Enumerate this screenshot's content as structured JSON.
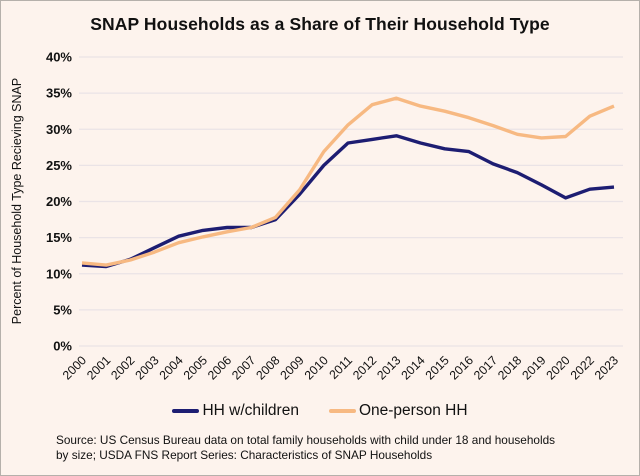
{
  "title": "SNAP Households as a Share of Their Household Type",
  "chart_data": {
    "type": "line",
    "categories": [
      "2000",
      "2001",
      "2002",
      "2003",
      "2004",
      "2005",
      "2006",
      "2007",
      "2008",
      "2009",
      "2010",
      "2011",
      "2012",
      "2013",
      "2014",
      "2015",
      "2016",
      "2017",
      "2018",
      "2019",
      "2020",
      "2022",
      "2023"
    ],
    "series": [
      {
        "name": "HH w/children",
        "color": "#1d1d72",
        "values": [
          11.2,
          11.0,
          12.0,
          13.6,
          15.2,
          16.0,
          16.4,
          16.4,
          17.5,
          21.0,
          25.0,
          28.1,
          28.6,
          29.1,
          28.1,
          27.3,
          26.9,
          25.2,
          24.0,
          22.3,
          20.5,
          21.7,
          22.0
        ]
      },
      {
        "name": "One-person HH",
        "color": "#f7b982",
        "values": [
          11.5,
          11.2,
          11.9,
          13.0,
          14.3,
          15.1,
          15.8,
          16.4,
          17.8,
          21.6,
          26.9,
          30.6,
          33.4,
          34.3,
          33.2,
          32.5,
          31.6,
          30.5,
          29.3,
          28.8,
          29.0,
          31.8,
          33.2
        ]
      }
    ],
    "title": "SNAP Households as a Share of Their Household Type",
    "xlabel": "",
    "ylabel": "Percent of Household Type Recieving SNAP",
    "ylim": [
      0,
      40
    ],
    "ytick_step": 5,
    "ytick_suffix": "%",
    "grid": true,
    "legend_position": "bottom"
  },
  "source": {
    "line1": "Source: US Census Bureau data on total family households with child under 18 and households",
    "line2": "by size; USDA FNS Report Series: Characteristics of SNAP Households"
  },
  "colors": {
    "background": "#fdf3ed",
    "gridline": "#eae3e6",
    "text": "#111111",
    "series_hh_w_children": "#1d1d72",
    "series_one_person_hh": "#f7b982"
  }
}
